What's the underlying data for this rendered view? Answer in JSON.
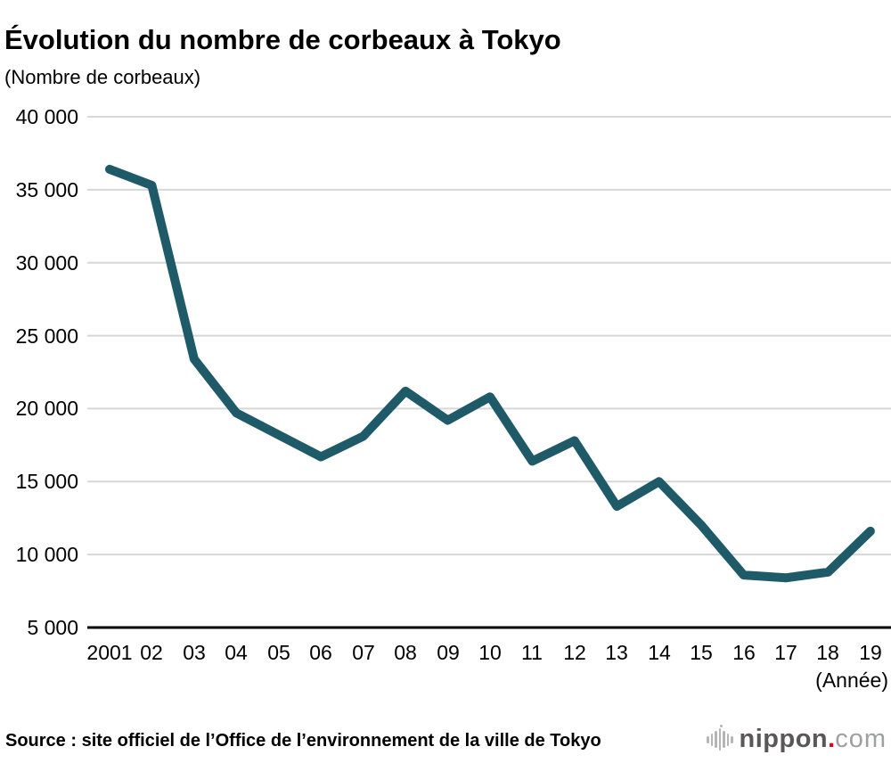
{
  "header": {
    "title": "Évolution du nombre de corbeaux à Tokyo",
    "unit_label": "(Nombre de corbeaux)"
  },
  "footer": {
    "source": "Source : site officiel de l’Office de l’environnement de la ville de Tokyo",
    "logo": {
      "name": "nippon",
      "dot": ".",
      "tld": "com",
      "brand_dark": "#595757",
      "brand_red": "#e60012",
      "brand_gray": "#9fa0a0"
    }
  },
  "chart_data": {
    "type": "line",
    "title": "Évolution du nombre de corbeaux à Tokyo",
    "ylabel": "(Nombre de corbeaux)",
    "xlabel": "(Année)",
    "categories": [
      "2001",
      "02",
      "03",
      "04",
      "05",
      "06",
      "07",
      "08",
      "09",
      "10",
      "11",
      "12",
      "13",
      "14",
      "15",
      "16",
      "17",
      "18",
      "19"
    ],
    "values": [
      36400,
      35300,
      23400,
      19700,
      18200,
      16700,
      18100,
      21200,
      19200,
      20800,
      16400,
      17800,
      13300,
      15000,
      12000,
      8600,
      8400,
      8800,
      11600
    ],
    "yticks": [
      40000,
      35000,
      30000,
      25000,
      20000,
      15000,
      10000,
      5000
    ],
    "ytick_labels": [
      "40 000",
      "35 000",
      "30 000",
      "25 000",
      "20 000",
      "15 000",
      "10 000",
      "5 000"
    ],
    "ylim": [
      5000,
      40000
    ],
    "grid": "horizontal",
    "gridline_color": "#d7d7d7",
    "axis_color": "#000000",
    "line_color": "#1e5a68",
    "line_width": 10,
    "legend": "none"
  }
}
